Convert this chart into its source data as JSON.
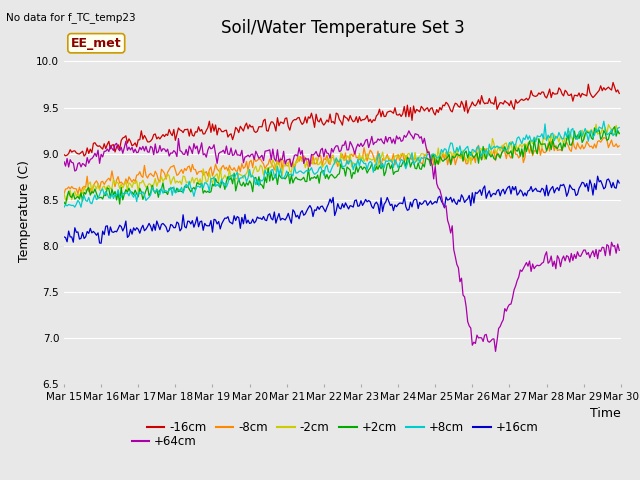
{
  "title": "Soil/Water Temperature Set 3",
  "xlabel": "Time",
  "ylabel": "Temperature (C)",
  "no_data_text": "No data for f_TC_temp23",
  "annotation_text": "EE_met",
  "ylim": [
    6.5,
    10.25
  ],
  "xlim": [
    0,
    360
  ],
  "yticks": [
    6.5,
    7.0,
    7.5,
    8.0,
    8.5,
    9.0,
    9.5,
    10.0
  ],
  "xtick_labels": [
    "Mar 15",
    "Mar 16",
    "Mar 17",
    "Mar 18",
    "Mar 19",
    "Mar 20",
    "Mar 21",
    "Mar 22",
    "Mar 23",
    "Mar 24",
    "Mar 25",
    "Mar 26",
    "Mar 27",
    "Mar 28",
    "Mar 29",
    "Mar 30"
  ],
  "n_points": 360,
  "series": [
    {
      "label": "-16cm",
      "color": "#cc0000",
      "base_start": 9.0,
      "base_end": 9.62,
      "noise": 0.035,
      "seed": 101
    },
    {
      "label": "-8cm",
      "color": "#ff8800",
      "base_start": 8.6,
      "base_end": 9.37,
      "noise": 0.04,
      "seed": 201
    },
    {
      "label": "-2cm",
      "color": "#cccc00",
      "base_start": 8.55,
      "base_end": 9.33,
      "noise": 0.04,
      "seed": 301
    },
    {
      "label": "+2cm",
      "color": "#00aa00",
      "base_start": 8.5,
      "base_end": 9.2,
      "noise": 0.04,
      "seed": 401
    },
    {
      "label": "+8cm",
      "color": "#00cccc",
      "base_start": 8.45,
      "base_end": 9.12,
      "noise": 0.04,
      "seed": 501
    },
    {
      "label": "+16cm",
      "color": "#0000cc",
      "base_start": 8.1,
      "base_end": 8.78,
      "noise": 0.04,
      "seed": 601
    },
    {
      "label": "+64cm",
      "color": "#aa00aa",
      "base_start": 9.0,
      "base_end": 8.0,
      "noise": 0.05,
      "seed": 701
    }
  ],
  "bg_color": "#e8e8e8",
  "fig_bg_color": "#e8e8e8",
  "grid_color": "#ffffff",
  "title_fontsize": 12,
  "label_fontsize": 9,
  "tick_fontsize": 7.5,
  "legend_fontsize": 8.5,
  "annotation_fontsize": 9
}
